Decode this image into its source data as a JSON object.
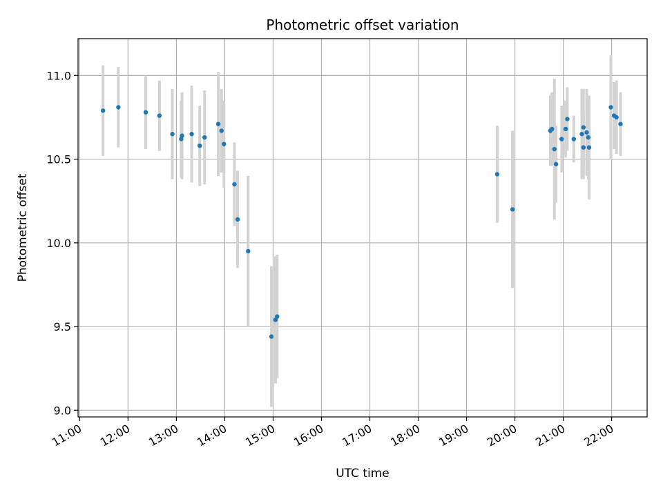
{
  "chart_data": {
    "type": "scatter",
    "title": "Photometric offset variation",
    "xlabel": "UTC time",
    "ylabel": "Photometric offset",
    "xlim": [
      "10:58",
      "22:44"
    ],
    "ylim": [
      8.96,
      11.22
    ],
    "x_ticks": [
      "11:00",
      "12:00",
      "13:00",
      "14:00",
      "15:00",
      "16:00",
      "17:00",
      "18:00",
      "19:00",
      "20:00",
      "21:00",
      "22:00"
    ],
    "y_ticks": [
      9.0,
      9.5,
      10.0,
      10.5,
      11.0
    ],
    "y_tick_labels": [
      "9.0",
      "9.5",
      "10.0",
      "10.5",
      "11.0"
    ],
    "grid": true,
    "point_color": "#1f77b4",
    "errorbar_color": "#d3d3d3",
    "points": [
      {
        "x": "11:29",
        "y": 10.79,
        "err": 0.27
      },
      {
        "x": "11:48",
        "y": 10.81,
        "err": 0.24
      },
      {
        "x": "12:22",
        "y": 10.78,
        "err": 0.22
      },
      {
        "x": "12:39",
        "y": 10.76,
        "err": 0.21
      },
      {
        "x": "12:55",
        "y": 10.65,
        "err": 0.27
      },
      {
        "x": "13:06",
        "y": 10.62,
        "err": 0.23
      },
      {
        "x": "13:07",
        "y": 10.64,
        "err": 0.26
      },
      {
        "x": "13:19",
        "y": 10.65,
        "err": 0.29
      },
      {
        "x": "13:29",
        "y": 10.58,
        "err": 0.24
      },
      {
        "x": "13:35",
        "y": 10.63,
        "err": 0.28
      },
      {
        "x": "13:52",
        "y": 10.71,
        "err": 0.31
      },
      {
        "x": "13:56",
        "y": 10.67,
        "err": 0.25
      },
      {
        "x": "13:59",
        "y": 10.59,
        "err": 0.26
      },
      {
        "x": "14:12",
        "y": 10.35,
        "err": 0.25
      },
      {
        "x": "14:16",
        "y": 10.14,
        "err": 0.29
      },
      {
        "x": "14:29",
        "y": 9.95,
        "err": 0.45
      },
      {
        "x": "14:58",
        "y": 9.44,
        "err": 0.42
      },
      {
        "x": "15:03",
        "y": 9.54,
        "err": 0.38
      },
      {
        "x": "15:05",
        "y": 9.56,
        "err": 0.37
      },
      {
        "x": "19:38",
        "y": 10.41,
        "err": 0.29
      },
      {
        "x": "19:57",
        "y": 10.2,
        "err": 0.47
      },
      {
        "x": "20:44",
        "y": 10.67,
        "err": 0.21
      },
      {
        "x": "20:46",
        "y": 10.68,
        "err": 0.22
      },
      {
        "x": "20:49",
        "y": 10.56,
        "err": 0.42
      },
      {
        "x": "20:51",
        "y": 10.47,
        "err": 0.23
      },
      {
        "x": "20:58",
        "y": 10.62,
        "err": 0.2
      },
      {
        "x": "21:03",
        "y": 10.68,
        "err": 0.17
      },
      {
        "x": "21:05",
        "y": 10.74,
        "err": 0.19
      },
      {
        "x": "21:13",
        "y": 10.62,
        "err": 0.14
      },
      {
        "x": "21:23",
        "y": 10.65,
        "err": 0.27
      },
      {
        "x": "21:25",
        "y": 10.69,
        "err": 0.23
      },
      {
        "x": "21:25",
        "y": 10.57,
        "err": 0.19
      },
      {
        "x": "21:29",
        "y": 10.66,
        "err": 0.26
      },
      {
        "x": "21:31",
        "y": 10.63,
        "err": 0.25
      },
      {
        "x": "21:32",
        "y": 10.57,
        "err": 0.31
      },
      {
        "x": "21:59",
        "y": 10.81,
        "err": 0.31
      },
      {
        "x": "22:03",
        "y": 10.76,
        "err": 0.2
      },
      {
        "x": "22:06",
        "y": 10.75,
        "err": 0.22
      },
      {
        "x": "22:11",
        "y": 10.71,
        "err": 0.19
      }
    ]
  }
}
